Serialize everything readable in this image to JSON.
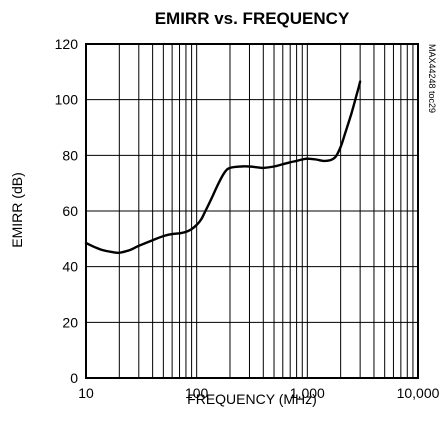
{
  "chart_data": {
    "type": "line",
    "title": "EMIRR vs. FREQUENCY",
    "xlabel": "FREQUENCY (MHz)",
    "ylabel": "EMIRR (dB)",
    "x_scale": "log",
    "xlim": [
      10,
      10000
    ],
    "ylim": [
      0,
      120
    ],
    "x_ticks": [
      10,
      100,
      1000,
      10000
    ],
    "x_tick_labels": [
      "10",
      "100",
      "1,000",
      "10,000"
    ],
    "y_ticks": [
      0,
      20,
      40,
      60,
      80,
      100,
      120
    ],
    "y_tick_labels": [
      "0",
      "20",
      "40",
      "60",
      "80",
      "100",
      "120"
    ],
    "grid": true,
    "annotation": "MAX44248 toc29",
    "series": [
      {
        "x": [
          10,
          12,
          14,
          17,
          20,
          25,
          30,
          40,
          50,
          60,
          70,
          80,
          90,
          100,
          110,
          120,
          140,
          160,
          180,
          200,
          250,
          300,
          350,
          400,
          500,
          600,
          700,
          800,
          900,
          1000,
          1200,
          1400,
          1600,
          1800,
          2000,
          2200,
          2500,
          2800,
          3000
        ],
        "y": [
          48.5,
          47,
          46,
          45.3,
          45,
          46,
          47.5,
          49.5,
          51,
          51.7,
          52,
          52.5,
          53.5,
          55,
          57,
          60,
          65.5,
          70.5,
          74,
          75.5,
          76,
          76,
          75.7,
          75.5,
          76,
          76.8,
          77.5,
          78,
          78.5,
          78.8,
          78.5,
          78,
          78.2,
          79.5,
          83,
          88,
          95,
          102,
          106.5
        ]
      }
    ]
  }
}
